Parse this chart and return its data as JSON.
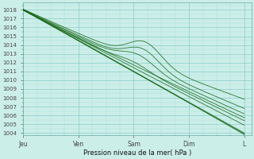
{
  "xlabel": "Pression niveau de la mer( hPa )",
  "x_tick_labels": [
    "Jeu",
    "Ven",
    "Sam",
    "Dim",
    "L"
  ],
  "x_tick_positions": [
    0,
    24,
    48,
    72,
    96
  ],
  "ylim": [
    1003.8,
    1018.8
  ],
  "xlim": [
    0,
    99
  ],
  "yticks": [
    1004,
    1005,
    1006,
    1007,
    1008,
    1009,
    1010,
    1011,
    1012,
    1013,
    1014,
    1015,
    1016,
    1017,
    1018
  ],
  "bg_color": "#cceee8",
  "grid_major_color": "#88cccc",
  "grid_minor_color": "#aadddd",
  "line_color": "#1a6b1a",
  "n_points": 400
}
